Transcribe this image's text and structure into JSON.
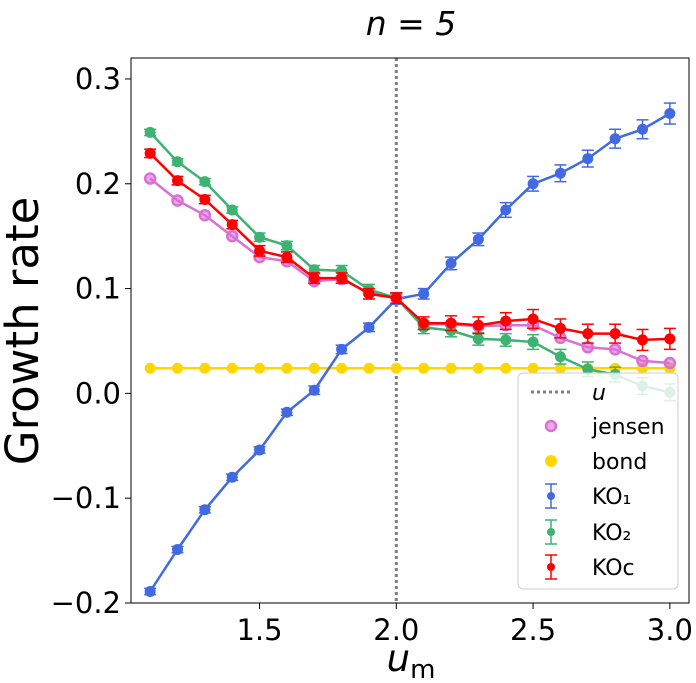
{
  "chart_data": {
    "type": "line",
    "title": "n = 5",
    "xlabel": "u_m",
    "ylabel": "Growth rate",
    "xlim": [
      1.03,
      3.07
    ],
    "ylim": [
      -0.2,
      0.32
    ],
    "x_ticks": [
      {
        "value": 1.5,
        "label": "1.5"
      },
      {
        "value": 2.0,
        "label": "2.0"
      },
      {
        "value": 2.5,
        "label": "2.5"
      },
      {
        "value": 3.0,
        "label": "3.0"
      }
    ],
    "y_ticks": [
      {
        "value": -0.2,
        "label": "−0.2"
      },
      {
        "value": -0.1,
        "label": "−0.1"
      },
      {
        "value": 0.0,
        "label": "0.0"
      },
      {
        "value": 0.1,
        "label": "0.1"
      },
      {
        "value": 0.2,
        "label": "0.2"
      },
      {
        "value": 0.3,
        "label": "0.3"
      }
    ],
    "grid": false,
    "legend_position": "lower-right",
    "x": [
      1.1,
      1.2,
      1.3,
      1.4,
      1.5,
      1.6,
      1.7,
      1.8,
      1.9,
      2.0,
      2.1,
      2.2,
      2.3,
      2.4,
      2.5,
      2.6,
      2.7,
      2.8,
      2.9,
      3.0
    ],
    "vline": {
      "name": "u",
      "x": 2.0,
      "color": "#808080",
      "style": "dotted"
    },
    "series": [
      {
        "name": "jensen",
        "marker": "ring",
        "color": "#da70d6",
        "values": [
          0.205,
          0.184,
          0.17,
          0.15,
          0.13,
          0.126,
          0.107,
          0.109,
          0.096,
          0.091,
          0.066,
          0.066,
          0.064,
          0.065,
          0.065,
          0.053,
          0.044,
          0.042,
          0.031,
          0.029
        ]
      },
      {
        "name": "bond",
        "marker": "dot",
        "color": "#ffd700",
        "values": [
          0.024,
          0.024,
          0.024,
          0.024,
          0.024,
          0.024,
          0.024,
          0.024,
          0.024,
          0.024,
          0.024,
          0.024,
          0.024,
          0.024,
          0.024,
          0.024,
          0.024,
          0.024,
          0.024,
          0.024
        ]
      },
      {
        "name": "KO₁",
        "marker": "errorbar",
        "color": "#4169e1",
        "values": [
          -0.189,
          -0.149,
          -0.111,
          -0.08,
          -0.054,
          -0.018,
          0.003,
          0.042,
          0.063,
          0.09,
          0.095,
          0.124,
          0.147,
          0.175,
          0.2,
          0.21,
          0.224,
          0.243,
          0.252,
          0.267
        ],
        "errors": [
          0.003,
          0.003,
          0.003,
          0.003,
          0.003,
          0.003,
          0.004,
          0.004,
          0.004,
          0.005,
          0.005,
          0.006,
          0.006,
          0.007,
          0.007,
          0.008,
          0.008,
          0.009,
          0.009,
          0.01
        ]
      },
      {
        "name": "KO₂",
        "marker": "errorbar",
        "color": "#3cb371",
        "values": [
          0.249,
          0.221,
          0.202,
          0.175,
          0.149,
          0.141,
          0.118,
          0.117,
          0.099,
          0.091,
          0.063,
          0.06,
          0.052,
          0.051,
          0.049,
          0.035,
          0.023,
          0.018,
          0.007,
          0.001
        ],
        "errors": [
          0.003,
          0.003,
          0.003,
          0.003,
          0.004,
          0.004,
          0.004,
          0.005,
          0.005,
          0.005,
          0.006,
          0.006,
          0.006,
          0.006,
          0.007,
          0.007,
          0.007,
          0.007,
          0.008,
          0.008
        ]
      },
      {
        "name": "KOc",
        "marker": "errorbar",
        "color": "#ff0000",
        "values": [
          0.229,
          0.203,
          0.185,
          0.161,
          0.136,
          0.13,
          0.11,
          0.11,
          0.095,
          0.091,
          0.067,
          0.067,
          0.065,
          0.069,
          0.071,
          0.062,
          0.057,
          0.057,
          0.051,
          0.052
        ],
        "errors": [
          0.004,
          0.004,
          0.004,
          0.004,
          0.005,
          0.005,
          0.005,
          0.005,
          0.005,
          0.005,
          0.006,
          0.007,
          0.008,
          0.008,
          0.009,
          0.009,
          0.009,
          0.009,
          0.01,
          0.01
        ]
      }
    ]
  }
}
